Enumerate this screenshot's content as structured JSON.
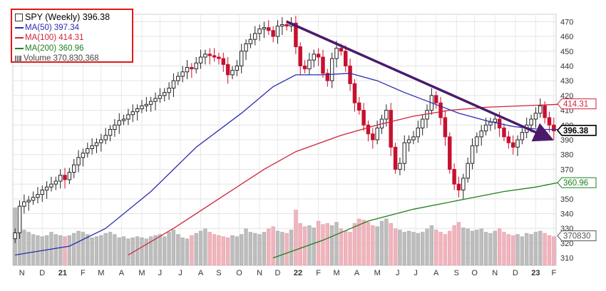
{
  "chart_data": {
    "type": "line",
    "title": "SPY (Weekly) 396.38",
    "legend": [
      {
        "label": "MA(50) 397.34",
        "color": "#2b2bb0"
      },
      {
        "label": "MA(100) 414.31",
        "color": "#d0223a"
      },
      {
        "label": "MA(200) 360.96",
        "color": "#1d7f1d"
      },
      {
        "label": "Volume 370,830,368",
        "color": "#888888"
      }
    ],
    "price_range": [
      305,
      475
    ],
    "y_ticks": [
      310,
      320,
      330,
      340,
      350,
      360,
      370,
      380,
      390,
      400,
      410,
      420,
      430,
      440,
      450,
      460,
      470
    ],
    "x_labels": [
      {
        "label": "N",
        "week": 1.5
      },
      {
        "label": "D",
        "week": 6
      },
      {
        "label": "21",
        "week": 10.5,
        "bold": true
      },
      {
        "label": "F",
        "week": 15
      },
      {
        "label": "M",
        "week": 19
      },
      {
        "label": "A",
        "week": 23.5
      },
      {
        "label": "M",
        "week": 28
      },
      {
        "label": "J",
        "week": 32
      },
      {
        "label": "J",
        "week": 36.5
      },
      {
        "label": "A",
        "week": 41
      },
      {
        "label": "S",
        "week": 45
      },
      {
        "label": "O",
        "week": 49.5
      },
      {
        "label": "N",
        "week": 54
      },
      {
        "label": "D",
        "week": 58
      },
      {
        "label": "22",
        "week": 62.5,
        "bold": true
      },
      {
        "label": "F",
        "week": 67
      },
      {
        "label": "M",
        "week": 71
      },
      {
        "label": "A",
        "week": 75.5
      },
      {
        "label": "M",
        "week": 80
      },
      {
        "label": "J",
        "week": 84.5
      },
      {
        "label": "J",
        "week": 88.5
      },
      {
        "label": "A",
        "week": 93
      },
      {
        "label": "S",
        "week": 97.5
      },
      {
        "label": "O",
        "week": 101.5
      },
      {
        "label": "N",
        "week": 106
      },
      {
        "label": "D",
        "week": 110.5
      },
      {
        "label": "23",
        "week": 115,
        "bold": true
      },
      {
        "label": "F",
        "week": 119
      }
    ],
    "week_count": 120,
    "closes": [
      327,
      345,
      348,
      349,
      351,
      353,
      356,
      358,
      360,
      362,
      366,
      363,
      368,
      373,
      378,
      381,
      384,
      386,
      388,
      390,
      393,
      397,
      400,
      403,
      404,
      407,
      409,
      411,
      413,
      414,
      416,
      418,
      420,
      422,
      425,
      430,
      433,
      436,
      439,
      438,
      442,
      446,
      448,
      447,
      446,
      445,
      441,
      434,
      437,
      440,
      450,
      455,
      458,
      462,
      465,
      466,
      464,
      460,
      467,
      468,
      467,
      469,
      453,
      440,
      438,
      444,
      448,
      446,
      435,
      430,
      445,
      452,
      450,
      440,
      428,
      415,
      410,
      400,
      394,
      390,
      398,
      404,
      410,
      385,
      370,
      374,
      388,
      390,
      392,
      398,
      404,
      410,
      420,
      415,
      405,
      392,
      370,
      360,
      356,
      364,
      374,
      386,
      392,
      396,
      400,
      402,
      404,
      398,
      392,
      388,
      385,
      390,
      395,
      400,
      404,
      408,
      413,
      405,
      400,
      396
    ],
    "ma50_points": [
      [
        0,
        312
      ],
      [
        12,
        318
      ],
      [
        20,
        330
      ],
      [
        30,
        355
      ],
      [
        40,
        385
      ],
      [
        50,
        408
      ],
      [
        57,
        426
      ],
      [
        62,
        434
      ],
      [
        68,
        434
      ],
      [
        74,
        435
      ],
      [
        80,
        430
      ],
      [
        86,
        422
      ],
      [
        92,
        415
      ],
      [
        98,
        408
      ],
      [
        104,
        403
      ],
      [
        110,
        399
      ],
      [
        116,
        397
      ],
      [
        120,
        397
      ]
    ],
    "ma100_points": [
      [
        25,
        312
      ],
      [
        35,
        330
      ],
      [
        45,
        350
      ],
      [
        55,
        370
      ],
      [
        62,
        382
      ],
      [
        72,
        393
      ],
      [
        80,
        400
      ],
      [
        88,
        406
      ],
      [
        96,
        410
      ],
      [
        104,
        412
      ],
      [
        112,
        413
      ],
      [
        120,
        414
      ]
    ],
    "ma200_points": [
      [
        57,
        310
      ],
      [
        68,
        322
      ],
      [
        78,
        335
      ],
      [
        88,
        343
      ],
      [
        98,
        349
      ],
      [
        108,
        355
      ],
      [
        115,
        358
      ],
      [
        120,
        361
      ]
    ],
    "trendline": {
      "from": [
        60,
        470
      ],
      "to": [
        118,
        391
      ]
    },
    "volumes": [
      52,
      45,
      32,
      30,
      28,
      27,
      26,
      27,
      30,
      28,
      27,
      26,
      27,
      29,
      31,
      30,
      28,
      25,
      26,
      27,
      29,
      30,
      28,
      25,
      26,
      24,
      25,
      26,
      25,
      24,
      26,
      27,
      28,
      26,
      30,
      32,
      28,
      25,
      24,
      27,
      29,
      31,
      33,
      30,
      28,
      27,
      26,
      25,
      27,
      26,
      28,
      33,
      30,
      29,
      28,
      30,
      33,
      35,
      31,
      30,
      29,
      32,
      50,
      38,
      35,
      36,
      34,
      40,
      37,
      38,
      36,
      39,
      33,
      31,
      30,
      38,
      42,
      41,
      39,
      36,
      35,
      40,
      42,
      38,
      33,
      32,
      30,
      31,
      30,
      29,
      30,
      33,
      36,
      32,
      30,
      28,
      31,
      36,
      39,
      34,
      33,
      31,
      32,
      33,
      30,
      29,
      31,
      33,
      30,
      28,
      27,
      28,
      26,
      29,
      28,
      30,
      31,
      29,
      27,
      26
    ],
    "volume_axis_ticks": [
      320,
      330
    ],
    "last_value_tags": [
      {
        "value": "414.31",
        "color": "#d0223a",
        "y": 414.31
      },
      {
        "value": "396.38",
        "color": "#000000",
        "y": 396.38,
        "bold": true
      },
      {
        "value": "360.96",
        "color": "#1d7f1d",
        "y": 360.96
      },
      {
        "value": "370830",
        "color": "#555555",
        "y": 325
      }
    ]
  }
}
